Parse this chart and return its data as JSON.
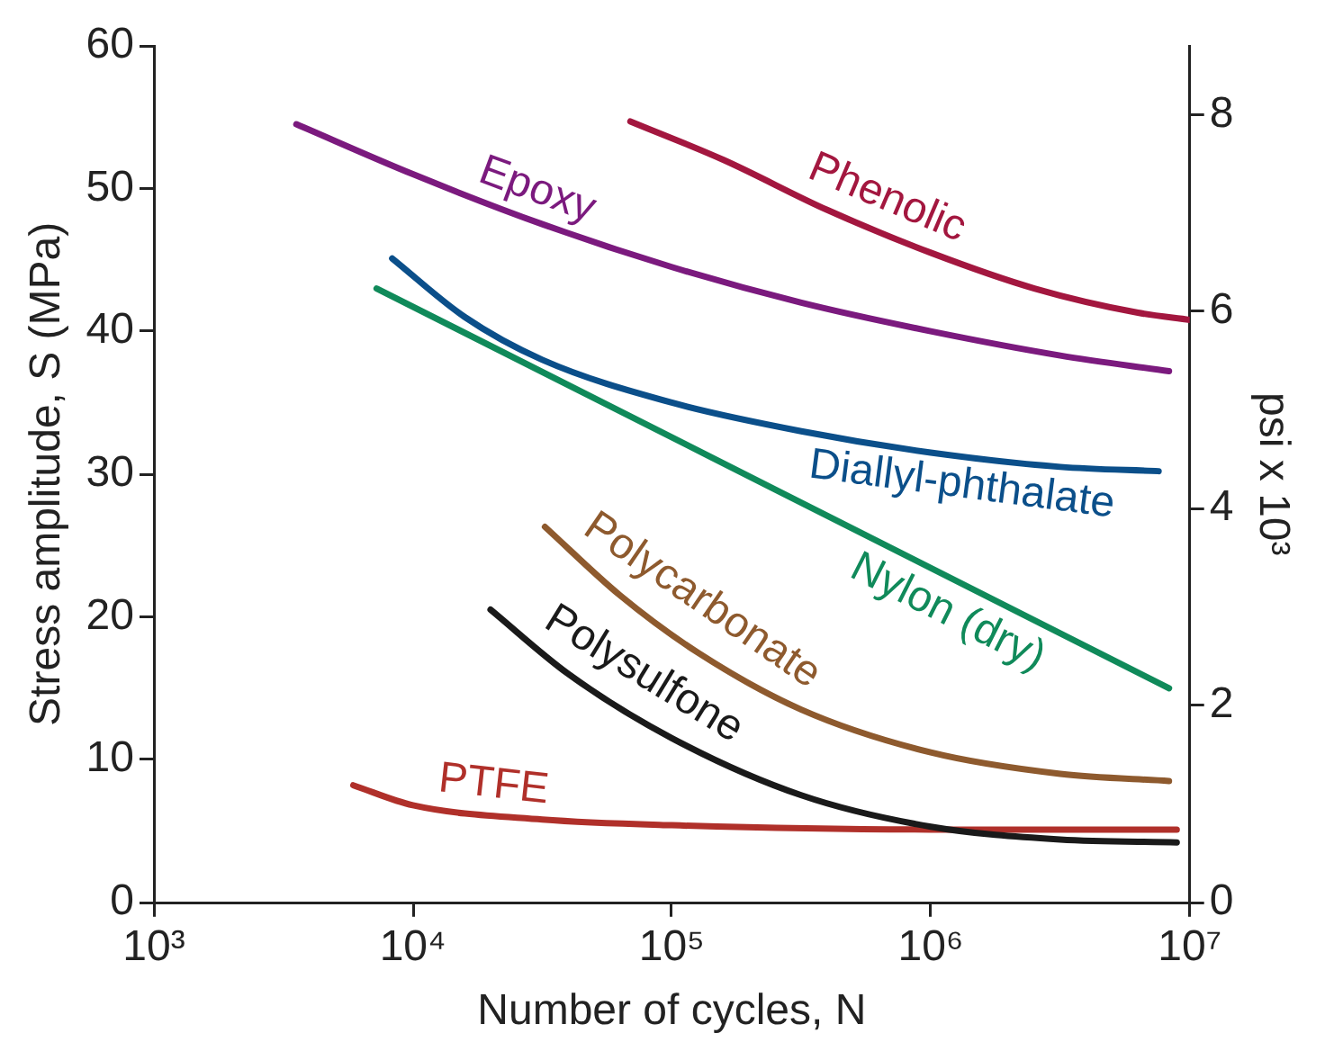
{
  "chart_data": {
    "type": "line",
    "xlabel": "Number of cycles, N",
    "ylabel": "Stress amplitude, S (MPa)",
    "y2label": "psi x 10³",
    "log": "x",
    "grid": false,
    "legend": false,
    "marker": "none",
    "line_style": "solid",
    "xlim": [
      1000,
      10000000
    ],
    "xticks": [
      {
        "value": 1000,
        "label": "10³"
      },
      {
        "value": 10000,
        "label": "10⁴"
      },
      {
        "value": 100000,
        "label": "10⁵"
      },
      {
        "value": 1000000,
        "label": "10⁶"
      },
      {
        "value": 10000000,
        "label": "10⁷"
      }
    ],
    "ylim": [
      0,
      60
    ],
    "yticks": [
      0,
      10,
      20,
      30,
      40,
      50,
      60
    ],
    "y2lim": [
      0,
      8.7
    ],
    "y2ticks": [
      0,
      2,
      4,
      6,
      8
    ],
    "series": [
      {
        "name": "Epoxy",
        "color": "#7b1a7e",
        "x": [
          3548,
          10000,
          31620,
          100000,
          316200,
          1000000,
          3162000,
          8318000
        ],
        "values": [
          54.5,
          51,
          47.5,
          44.5,
          42,
          40,
          38.3,
          37.2
        ]
      },
      {
        "name": "Phenolic",
        "color": "#a3173f",
        "x": [
          69180,
          158500,
          398100,
          1000000,
          2512000,
          6310000,
          10000000
        ],
        "values": [
          54.7,
          52,
          48.5,
          45.5,
          43,
          41.3,
          40.8
        ]
      },
      {
        "name": "Diallyl-phthalate",
        "color": "#0b4f8a",
        "x": [
          8318,
          15850,
          31620,
          100000,
          316200,
          1000000,
          3162000,
          7586000
        ],
        "values": [
          45.1,
          41,
          38,
          35,
          33,
          31.5,
          30.5,
          30.2
        ]
      },
      {
        "name": "Nylon (dry)",
        "color": "#108a5a",
        "x": [
          7244,
          8318000
        ],
        "values": [
          43,
          15
        ]
      },
      {
        "name": "Polycarbonate",
        "color": "#8e5a2e",
        "x": [
          32360,
          63100,
          125900,
          316200,
          1000000,
          3162000,
          8318000
        ],
        "values": [
          26.3,
          21.5,
          17.5,
          13.5,
          10.5,
          9,
          8.5
        ]
      },
      {
        "name": "Polysulfone",
        "color": "#1a1a1a",
        "x": [
          19950,
          39810,
          100000,
          316200,
          1000000,
          3162000,
          8913000
        ],
        "values": [
          20.5,
          16,
          11.5,
          7.5,
          5.3,
          4.4,
          4.2
        ]
      },
      {
        "name": "PTFE",
        "color": "#b0302a",
        "x": [
          5888,
          10000,
          31620,
          100000,
          1000000,
          8913000
        ],
        "values": [
          8.2,
          6.8,
          5.8,
          5.4,
          5.1,
          5.1
        ]
      }
    ]
  }
}
